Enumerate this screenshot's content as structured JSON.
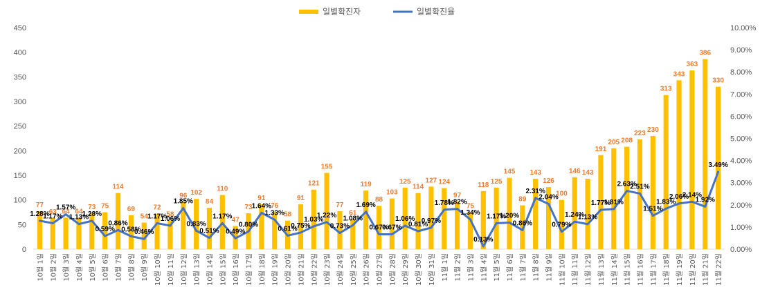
{
  "chart_data": {
    "type": "bar+line",
    "title": "",
    "categories": [
      "10월 1일",
      "10월 2일",
      "10월 3일",
      "10월 4일",
      "10월 5일",
      "10월 6일",
      "10월 7일",
      "10월 8일",
      "10월 9일",
      "10월 10일",
      "10월 11일",
      "10월 12일",
      "10월 13일",
      "10월 14일",
      "10월 15일",
      "10월 16일",
      "10월 17일",
      "10월 18일",
      "10월 19일",
      "10월 20일",
      "10월 21일",
      "10월 22일",
      "10월 23일",
      "10월 24일",
      "10월 25일",
      "10월 26일",
      "10월 27일",
      "10월 28일",
      "10월 29일",
      "10월 30일",
      "10월 31일",
      "11월 1일",
      "11월 2일",
      "11월 3일",
      "11월 4일",
      "11월 5일",
      "11월 6일",
      "11월 7일",
      "11월 8일",
      "11월 9일",
      "11월 10일",
      "11월 11일",
      "11월 12일",
      "11월 13일",
      "11월 14일",
      "11월 15일",
      "11월 16일",
      "11월 17일",
      "11월 18일",
      "11월 19일",
      "11월 20일",
      "11월 21일",
      "11월 22일"
    ],
    "series": [
      {
        "name": "일별확진자",
        "type": "bar",
        "axis": "left",
        "color": "#FFC000",
        "label_color": "#ED7D31",
        "values": [
          77,
          63,
          64,
          64,
          73,
          75,
          114,
          69,
          54,
          72,
          58,
          96,
          102,
          84,
          110,
          47,
          73,
          91,
          76,
          58,
          91,
          121,
          155,
          77,
          61,
          119,
          88,
          103,
          125,
          114,
          127,
          124,
          97,
          75,
          118,
          125,
          145,
          89,
          143,
          126,
          100,
          146,
          143,
          191,
          205,
          208,
          223,
          230,
          313,
          343,
          363,
          386,
          330
        ],
        "labels": [
          "77",
          "63",
          "64",
          "64",
          "73",
          "75",
          "114",
          "69",
          "54",
          "72",
          "58",
          "96",
          "102",
          "84",
          "110",
          "47",
          "73",
          "91",
          "76",
          "58",
          "91",
          "121",
          "155",
          "77",
          "61",
          "119",
          "88",
          "103",
          "125",
          "114",
          "127",
          "124",
          "97",
          "75",
          "118",
          "125",
          "145",
          "89",
          "143",
          "126",
          "100",
          "146",
          "143",
          "191",
          "205",
          "208",
          "223",
          "230",
          "313",
          "343",
          "363",
          "386",
          "330"
        ]
      },
      {
        "name": "일별확진율",
        "type": "line",
        "axis": "right",
        "color": "#4472C4",
        "values": [
          1.28,
          1.17,
          1.57,
          1.13,
          1.28,
          0.59,
          0.86,
          0.58,
          0.46,
          1.17,
          1.06,
          1.85,
          0.83,
          0.51,
          1.17,
          0.49,
          0.8,
          1.64,
          1.33,
          0.61,
          0.75,
          1.03,
          1.22,
          0.73,
          1.08,
          1.69,
          0.67,
          0.67,
          1.06,
          0.81,
          0.97,
          1.78,
          1.82,
          1.34,
          0.13,
          1.17,
          1.2,
          0.86,
          2.31,
          2.04,
          0.79,
          1.24,
          1.13,
          1.77,
          1.81,
          2.63,
          2.51,
          1.51,
          1.83,
          2.06,
          2.14,
          1.92,
          3.49
        ],
        "labels": [
          "1.28%",
          "1.17%",
          "1.57%",
          "1.13%",
          "1.28%",
          "0.59%",
          "0.86%",
          "0.58%",
          "0.46%",
          "1.17%",
          "1.06%",
          "1.85%",
          "0.83%",
          "0.51%",
          "1.17%",
          "0.49%",
          "0.80%",
          "1.64%",
          "1.33%",
          "0.61%",
          "0.75%",
          "1.03%",
          "1.22%",
          "0.73%",
          "1.08%",
          "1.69%",
          "0.67%",
          "0.67%",
          "1.06%",
          "0.81%",
          "0.97%",
          "1.78%",
          "1.82%",
          "1.34%",
          "0.13%",
          "1.17%",
          "1.20%",
          "0.86%",
          "2.31%",
          "2.04%",
          "0.79%",
          "1.24%",
          "1.13%",
          "1.77%",
          "1.81%",
          "2.63%",
          "2.51%",
          "1.51%",
          "1.83%",
          "2.06%",
          "2.14%",
          "1.92%",
          "3.49%"
        ]
      }
    ],
    "y_left": {
      "min": 0,
      "max": 450,
      "ticks": [
        "0",
        "50",
        "100",
        "150",
        "200",
        "250",
        "300",
        "350",
        "400",
        "450"
      ]
    },
    "y_right": {
      "min": 0,
      "max": 10,
      "ticks": [
        "0.00%",
        "1.00%",
        "2.00%",
        "3.00%",
        "4.00%",
        "5.00%",
        "6.00%",
        "7.00%",
        "8.00%",
        "9.00%",
        "10.00%"
      ]
    },
    "grid": false,
    "legend_position": "top-center"
  }
}
